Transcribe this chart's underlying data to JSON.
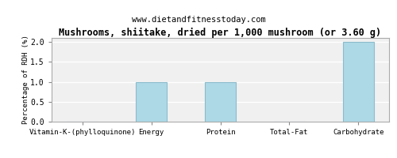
{
  "title": "Mushrooms, shiitake, dried per 1,000 mushroom (or 3.60 g)",
  "subtitle": "www.dietandfitnesstoday.com",
  "categories": [
    "Vitamin-K-(phylloquinone)",
    "Energy",
    "Protein",
    "Total-Fat",
    "Carbohydrate"
  ],
  "values": [
    0.0,
    1.0,
    1.0,
    0.0,
    2.0
  ],
  "bar_color": "#add8e6",
  "bar_edge_color": "#8bbccc",
  "ylabel": "Percentage of RDH (%)",
  "ylim": [
    0,
    2.1
  ],
  "yticks": [
    0.0,
    0.5,
    1.0,
    1.5,
    2.0
  ],
  "background_color": "#ffffff",
  "plot_bg_color": "#f0f0f0",
  "grid_color": "#ffffff",
  "title_fontsize": 8.5,
  "subtitle_fontsize": 7.5,
  "label_fontsize": 6.5,
  "tick_fontsize": 7,
  "ylabel_fontsize": 6.5
}
